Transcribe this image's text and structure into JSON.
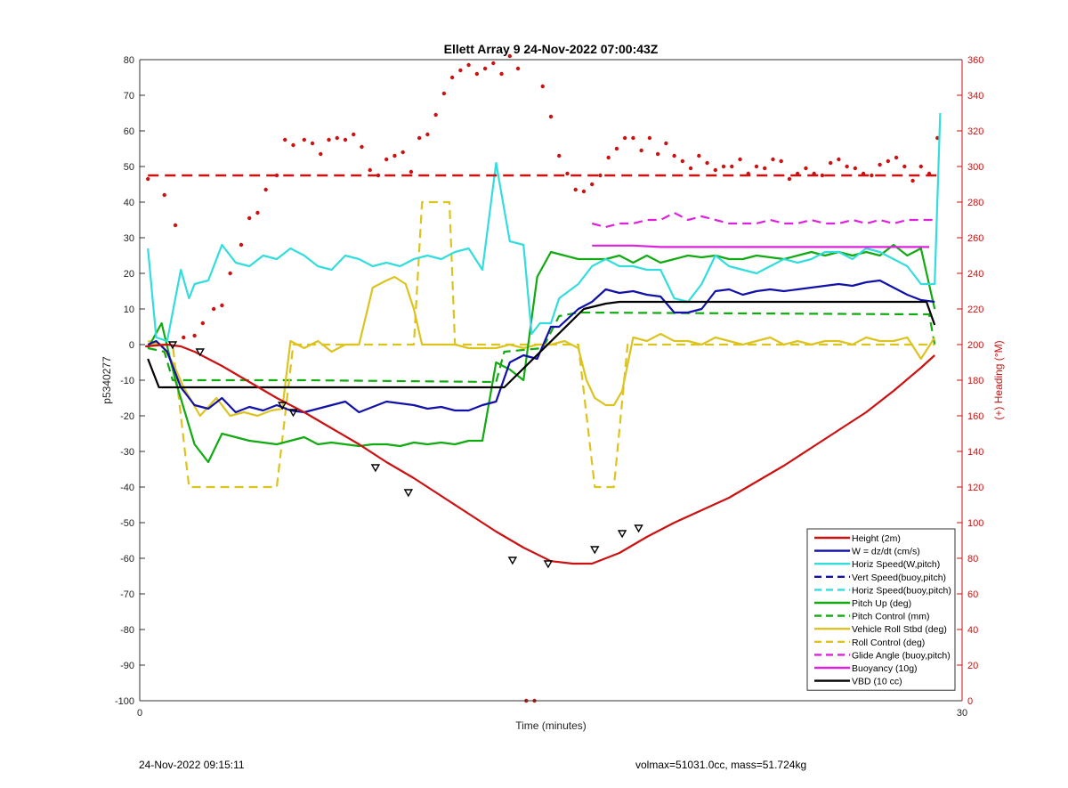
{
  "footer": {
    "left": "24-Nov-2022 09:15:11",
    "right": "volmax=51031.0cc, mass=51.724kg"
  },
  "chart_data": {
    "type": "line",
    "title": "Ellett Array 9 24-Nov-2022 07:00:43Z",
    "xlabel": "Time (minutes)",
    "ylabel": "p5340277",
    "y2label": "(+) Heading (°M)",
    "xlim": [
      0,
      30
    ],
    "ylim": [
      -100,
      80
    ],
    "y2lim": [
      0,
      360
    ],
    "xticks": [
      0,
      30
    ],
    "yticks": [
      80,
      70,
      60,
      50,
      40,
      30,
      20,
      10,
      0,
      -10,
      -20,
      -30,
      -40,
      -50,
      -60,
      -70,
      -80,
      -90,
      -100
    ],
    "y2ticks": [
      360,
      340,
      320,
      300,
      280,
      260,
      240,
      220,
      200,
      180,
      160,
      140,
      120,
      100,
      80,
      60,
      40,
      20,
      0
    ],
    "grid": false,
    "legend_position": "bottom-right",
    "colors": {
      "height": "#cc1111",
      "w": "#1111aa",
      "cyan": "#33dddd",
      "green": "#11aa11",
      "gold": "#ddc31f",
      "magenta": "#dd22dd",
      "black": "#000000",
      "axis_right": "#cc1111"
    },
    "series": [
      {
        "name": "Height (2m)",
        "color": "#cc1111",
        "style": "solid",
        "x": [
          0.2,
          1.0,
          1.5,
          2.0,
          3.0,
          4.0,
          5.0,
          6.0,
          7.0,
          8.0,
          9.0,
          10.0,
          11.0,
          12.0,
          13.0,
          14.0,
          15.0,
          15.8,
          16.5,
          17.5,
          18.5,
          19.5,
          20.5,
          21.5,
          22.5,
          23.5,
          24.5,
          25.5,
          26.5,
          27.5,
          28.5,
          29.0
        ],
        "y": [
          -0.5,
          0,
          -0.5,
          -2,
          -6,
          -10.5,
          -15,
          -19,
          -23.5,
          -28,
          -33,
          -37.5,
          -42.5,
          -47.5,
          -52.5,
          -57,
          -60.8,
          -61.5,
          -61.5,
          -58.5,
          -54,
          -50,
          -46.5,
          -43,
          -38.5,
          -34,
          -29,
          -24,
          -19,
          -13,
          -6.5,
          -3
        ]
      },
      {
        "name": "W = dz/dt (cm/s)",
        "color": "#1111aa",
        "style": "solid",
        "x": [
          0.3,
          0.6,
          1.0,
          1.5,
          2.0,
          2.5,
          3.0,
          3.5,
          4.0,
          4.5,
          5.0,
          5.5,
          6.0,
          6.5,
          7.0,
          7.5,
          8.0,
          8.5,
          9.0,
          9.5,
          10.0,
          10.5,
          11.0,
          11.5,
          12.0,
          12.5,
          13.0,
          13.5,
          14.0,
          14.5,
          15.0,
          15.3,
          16.0,
          16.5,
          17.0,
          17.5,
          18.0,
          18.5,
          19.0,
          19.5,
          20.0,
          20.5,
          21.0,
          21.5,
          22.0,
          22.5,
          23.0,
          23.5,
          24.0,
          24.5,
          25.0,
          25.5,
          26.0,
          26.5,
          27.0,
          27.5,
          28.0,
          28.5,
          29.0
        ],
        "y": [
          0,
          1,
          -2,
          -12,
          -17,
          -18,
          -15,
          -19,
          -17.5,
          -18.5,
          -17,
          -18.5,
          -19,
          -18,
          -17,
          -16,
          -19,
          -17.5,
          -16,
          -16.5,
          -17,
          -18,
          -17.5,
          -18.5,
          -18.5,
          -17,
          -16,
          -5,
          -3,
          -4,
          5,
          5,
          10,
          12,
          15.5,
          14.5,
          15,
          14,
          13.5,
          9,
          9,
          10,
          15,
          15.5,
          14,
          15,
          15.5,
          15,
          15.5,
          16,
          16.5,
          17,
          16.5,
          17.5,
          18,
          16,
          14,
          12.5,
          12
        ]
      },
      {
        "name": "Horiz Speed(W,pitch)",
        "color": "#33dddd",
        "style": "solid",
        "x": [
          0.3,
          0.6,
          1.0,
          1.5,
          1.8,
          2.0,
          2.5,
          3.0,
          3.5,
          4.0,
          4.5,
          5.0,
          5.5,
          6.0,
          6.5,
          7.0,
          7.5,
          8.0,
          8.5,
          9.0,
          9.5,
          10.0,
          10.5,
          11.0,
          11.5,
          12.0,
          12.5,
          13.0,
          13.5,
          14.0,
          14.3,
          14.6,
          15.0,
          15.3,
          16.0,
          16.5,
          17.0,
          17.5,
          18.0,
          18.5,
          19.0,
          19.5,
          20.0,
          20.5,
          21.0,
          21.5,
          22.0,
          22.5,
          23.0,
          23.5,
          24.0,
          24.5,
          25.0,
          25.5,
          26.0,
          26.5,
          27.0,
          27.5,
          28.0,
          28.5,
          29.0,
          29.2
        ],
        "y": [
          27,
          2,
          1,
          21,
          13,
          17,
          18,
          28,
          23,
          22,
          25,
          24,
          27,
          25,
          22,
          21,
          25,
          24,
          22,
          23,
          22,
          24,
          25,
          24,
          26,
          27,
          21,
          51,
          29,
          28,
          3,
          6,
          6,
          13,
          17,
          22,
          24,
          22,
          22,
          21,
          21,
          13,
          12,
          17,
          25,
          22,
          21,
          20,
          22,
          24,
          23,
          24,
          26,
          26,
          24,
          27,
          26,
          24,
          22,
          17,
          17,
          65
        ]
      },
      {
        "name": "Vert Speed(buoy,pitch)",
        "color": "#1111aa",
        "style": "dash",
        "x": [],
        "y": []
      },
      {
        "name": "Horiz Speed(buoy,pitch)",
        "color": "#33dddd",
        "style": "dash",
        "x": [],
        "y": []
      },
      {
        "name": "Pitch Up (deg)",
        "color": "#11aa11",
        "style": "solid",
        "x": [
          0.3,
          0.8,
          1.3,
          2.0,
          2.5,
          3.0,
          3.5,
          4.0,
          4.5,
          5.0,
          5.5,
          6.0,
          6.5,
          7.0,
          7.5,
          8.0,
          8.5,
          9.0,
          9.5,
          10.0,
          10.5,
          11.0,
          11.5,
          12.0,
          12.5,
          13.0,
          13.5,
          14.0,
          14.5,
          15.0,
          15.5,
          16.0,
          16.5,
          17.0,
          17.5,
          18.0,
          18.5,
          19.0,
          19.5,
          20.0,
          20.5,
          21.0,
          21.5,
          22.0,
          22.5,
          23.0,
          23.5,
          24.0,
          24.5,
          25.0,
          25.5,
          26.0,
          26.5,
          27.0,
          27.5,
          28.0,
          28.5,
          29.0
        ],
        "y": [
          -1,
          6,
          -10,
          -28,
          -33,
          -25,
          -26,
          -27,
          -27.5,
          -28,
          -27,
          -26,
          -28,
          -27.5,
          -28,
          -28.5,
          -28,
          -28,
          -28.5,
          -27.5,
          -28,
          -27.5,
          -28,
          -27,
          -27,
          -5,
          -7,
          -10,
          19,
          26,
          25,
          24,
          24,
          24,
          25,
          23,
          25,
          23,
          24,
          25,
          24.5,
          25,
          24,
          24,
          25,
          24.5,
          24,
          25,
          26,
          25,
          26,
          25,
          26,
          25,
          28,
          25,
          27,
          10
        ]
      },
      {
        "name": "Pitch Control (mm)",
        "color": "#11aa11",
        "style": "dash",
        "x": [
          0.3,
          0.9,
          1.2,
          2.0,
          5.5,
          6.0,
          13.0,
          13.3,
          14.7,
          15.3,
          16.0,
          28.5,
          28.8,
          29.0
        ],
        "y": [
          -1,
          -2,
          -10,
          -10,
          -10,
          -10,
          -10.5,
          -2,
          -1,
          8,
          9,
          8.5,
          8.5,
          0
        ]
      },
      {
        "name": "Vehicle Roll Stbd (deg)",
        "color": "#ddc31f",
        "style": "solid",
        "x": [
          0.3,
          0.8,
          1.2,
          1.6,
          2.2,
          2.8,
          3.3,
          3.8,
          4.3,
          4.8,
          5.2,
          5.5,
          6.0,
          6.5,
          7.0,
          7.5,
          8.0,
          8.5,
          9.0,
          9.3,
          9.7,
          10.0,
          10.3,
          10.6,
          11.0,
          11.5,
          12.0,
          12.5,
          13.0,
          13.5,
          14.0,
          14.5,
          15.0,
          15.5,
          16.0,
          16.3,
          16.6,
          17.0,
          17.3,
          17.6,
          18.0,
          18.5,
          19.0,
          19.5,
          20.0,
          20.5,
          21.0,
          21.5,
          22.0,
          22.5,
          23.0,
          23.5,
          24.0,
          24.5,
          25.0,
          25.5,
          26.0,
          26.5,
          27.0,
          27.5,
          28.0,
          28.5,
          29.0
        ],
        "y": [
          1,
          0,
          -5,
          -12,
          -20,
          -15,
          -20,
          -19,
          -20,
          -18.5,
          -18,
          1,
          -1,
          1,
          -2,
          0,
          0,
          16,
          18,
          19,
          17,
          10,
          0,
          0,
          0,
          0,
          -1,
          -1,
          -1,
          0,
          -1,
          0,
          0,
          1,
          -1,
          -10,
          -15,
          -17,
          -17,
          -13,
          2,
          1,
          3,
          1,
          1,
          0,
          2,
          1,
          0,
          1,
          2,
          0,
          1,
          0,
          1,
          1,
          0,
          2,
          1,
          1,
          2,
          -4,
          2
        ]
      },
      {
        "name": "Roll Control (deg)",
        "color": "#ddc31f",
        "style": "dash",
        "x": [
          0.3,
          1.2,
          1.8,
          2.2,
          5.0,
          5.6,
          10.0,
          10.3,
          11.3,
          11.5,
          12.5,
          13.0,
          15.0,
          16.0,
          16.6,
          17.3,
          17.8,
          18.5,
          28.5,
          29.0
        ],
        "y": [
          0,
          0,
          -40,
          -40,
          -40,
          0,
          0,
          40,
          40,
          0,
          0,
          0,
          0,
          0,
          -40,
          -40,
          0,
          0,
          0,
          0
        ]
      },
      {
        "name": "Glide Angle (buoy,pitch)",
        "color": "#dd22dd",
        "style": "dash",
        "x": [
          16.5,
          17.0,
          17.5,
          18.0,
          18.5,
          19.0,
          19.5,
          20.0,
          20.5,
          21.0,
          21.5,
          22.0,
          22.5,
          23.0,
          23.5,
          24.0,
          24.5,
          25.0,
          25.5,
          26.0,
          26.5,
          27.0,
          27.5,
          28.0,
          28.5,
          29.0
        ],
        "y": [
          34,
          33,
          34,
          34,
          35,
          35,
          37,
          35,
          36,
          35,
          34,
          34,
          34,
          35,
          34,
          34,
          35,
          34,
          34,
          35,
          34,
          35,
          34,
          35,
          35,
          35
        ]
      },
      {
        "name": "Buoyancy (10g)",
        "color": "#dd22dd",
        "style": "solid",
        "x": [
          16.5,
          18.0,
          19.0,
          22.0,
          25.0,
          28.0,
          28.8
        ],
        "y": [
          27.8,
          27.8,
          27.4,
          27.4,
          27.4,
          27.4,
          27.4
        ]
      },
      {
        "name": "VBD (10 cc)",
        "color": "#000000",
        "style": "solid",
        "x": [
          0.3,
          0.7,
          2.0,
          13.2,
          13.3,
          16.2,
          17.0,
          17.5,
          28.7,
          29.0
        ],
        "y": [
          -4,
          -12,
          -12,
          -12,
          -12,
          10,
          11.5,
          12,
          12,
          5.5
        ]
      }
    ],
    "height_markers": {
      "x": [
        1.2,
        2.2,
        5.2,
        5.6,
        8.6,
        9.8,
        13.6,
        14.9,
        16.6,
        17.6,
        18.2
      ],
      "y": [
        0,
        -2,
        -17,
        -19,
        -34.5,
        -41.5,
        -60.5,
        -61.5,
        -57.5,
        -53,
        -51.5
      ]
    },
    "heading_dots": {
      "axis": "right",
      "color": "#cc1111",
      "x": [
        0.3,
        0.9,
        1.3,
        1.6,
        2.0,
        2.3,
        2.7,
        3.0,
        3.3,
        3.7,
        4.0,
        4.3,
        4.6,
        5.0,
        5.3,
        5.6,
        6.0,
        6.3,
        6.6,
        6.9,
        7.2,
        7.5,
        7.8,
        8.1,
        8.4,
        8.7,
        9.0,
        9.3,
        9.6,
        9.9,
        10.2,
        10.5,
        10.8,
        11.1,
        11.4,
        11.7,
        12.0,
        12.3,
        12.6,
        12.9,
        13.2,
        13.5,
        13.8,
        14.1,
        14.4,
        14.7,
        15.0,
        15.3,
        15.6,
        15.9,
        16.2,
        16.5,
        16.8,
        17.1,
        17.4,
        17.7,
        18.0,
        18.3,
        18.6,
        18.9,
        19.2,
        19.5,
        19.8,
        20.1,
        20.4,
        20.7,
        21.0,
        21.3,
        21.6,
        21.9,
        22.2,
        22.5,
        22.8,
        23.1,
        23.4,
        23.7,
        24.0,
        24.3,
        24.6,
        24.9,
        25.2,
        25.5,
        25.8,
        26.1,
        26.4,
        26.7,
        27.0,
        27.3,
        27.6,
        27.9,
        28.2,
        28.5,
        28.8,
        29.1
      ],
      "y": [
        293,
        284,
        267,
        204,
        205,
        212,
        220,
        222,
        240,
        256,
        271,
        274,
        287,
        295,
        315,
        312,
        315,
        313,
        307,
        315,
        316,
        315,
        318,
        311,
        298,
        295,
        304,
        306,
        308,
        297,
        316,
        318,
        329,
        341,
        350,
        354,
        357,
        352,
        355,
        358,
        352,
        362,
        355,
        0,
        0,
        345,
        328,
        306,
        296,
        287,
        286,
        290,
        295,
        305,
        310,
        316,
        316,
        309,
        316,
        307,
        313,
        306,
        303,
        299,
        306,
        302,
        298,
        300,
        300,
        304,
        296,
        300,
        299,
        304,
        303,
        293,
        296,
        299,
        296,
        295,
        302,
        304,
        300,
        299,
        296,
        295,
        301,
        303,
        305,
        300,
        292,
        300,
        296,
        316
      ]
    }
  }
}
